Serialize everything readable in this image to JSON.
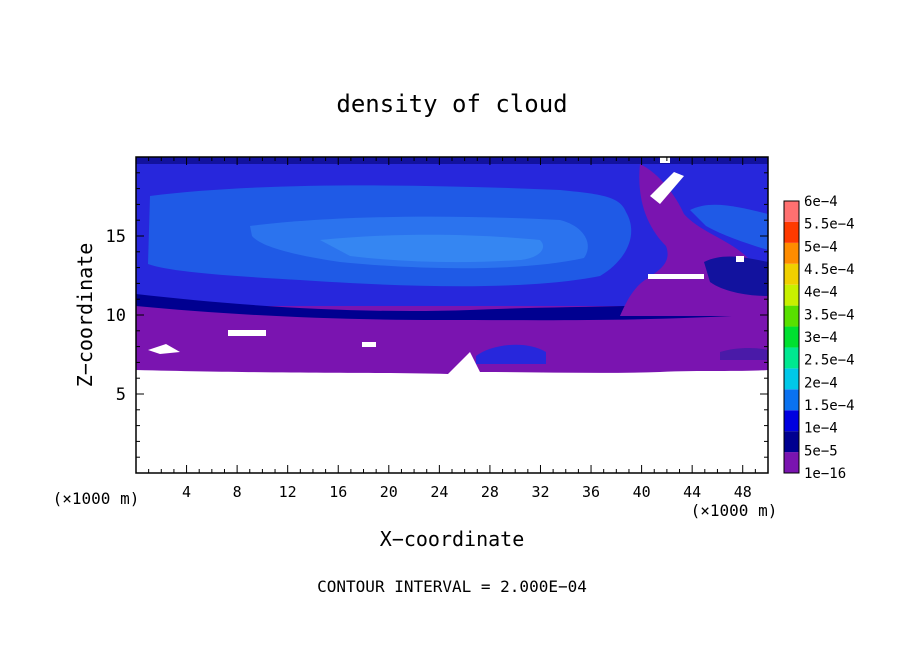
{
  "chart_data": {
    "type": "heatmap",
    "title": "density of cloud",
    "xlabel": "X−coordinate",
    "ylabel": "Z−coordinate",
    "x_unit": "(×1000 m)",
    "xlim": [
      0,
      50
    ],
    "ylim": [
      0,
      20
    ],
    "x_ticks": [
      4,
      8,
      12,
      16,
      20,
      24,
      28,
      32,
      36,
      40,
      44,
      48
    ],
    "y_ticks": [
      5,
      10,
      15
    ],
    "footer": "CONTOUR INTERVAL = 2.000E−04",
    "colorbar": {
      "labels": [
        "1e−16",
        "5e−5",
        "1e−4",
        "1.5e−4",
        "2e−4",
        "2.5e−4",
        "3e−4",
        "3.5e−4",
        "4e−4",
        "4.5e−4",
        "5e−4",
        "5.5e−4",
        "6e−4"
      ],
      "colors": [
        "#7a14b0",
        "#000090",
        "#0000e0",
        "#0a72f0",
        "#00c8e8",
        "#00e890",
        "#00e030",
        "#58e000",
        "#c8f000",
        "#f0d000",
        "#ff8c00",
        "#ff3a00",
        "#ff7070"
      ]
    },
    "regions": [
      {
        "name": "upper-layer",
        "z_range": [
          11,
          19.6
        ],
        "level": "1e−4 to 1.5e−4"
      },
      {
        "name": "lower-layer",
        "z_range": [
          6.3,
          11
        ],
        "level": "1e−16 to 5e−5"
      },
      {
        "name": "below-cloud",
        "z_range": [
          0,
          6.3
        ],
        "level": "none"
      }
    ]
  }
}
